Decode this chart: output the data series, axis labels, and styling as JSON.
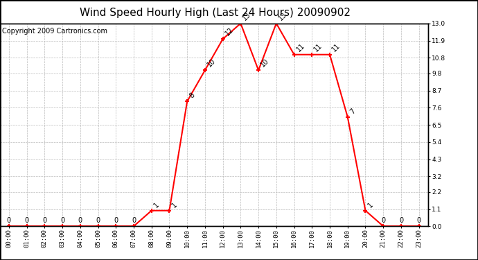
{
  "title": "Wind Speed Hourly High (Last 24 Hours) 20090902",
  "copyright": "Copyright 2009 Cartronics.com",
  "hours": [
    "00:00",
    "01:00",
    "02:00",
    "03:00",
    "04:00",
    "05:00",
    "06:00",
    "07:00",
    "08:00",
    "09:00",
    "10:00",
    "11:00",
    "12:00",
    "13:00",
    "14:00",
    "15:00",
    "16:00",
    "17:00",
    "18:00",
    "19:00",
    "20:00",
    "21:00",
    "22:00",
    "23:00"
  ],
  "values": [
    0,
    0,
    0,
    0,
    0,
    0,
    0,
    0,
    1,
    1,
    8,
    10,
    12,
    13,
    10,
    13,
    11,
    11,
    11,
    7,
    1,
    0,
    0,
    0
  ],
  "line_color": "#FF0000",
  "marker_color": "#FF0000",
  "background_color": "#FFFFFF",
  "grid_color": "#BBBBBB",
  "title_fontsize": 11,
  "copyright_fontsize": 7,
  "label_fontsize": 7,
  "tick_fontsize": 6.5,
  "ylim": [
    0.0,
    13.0
  ],
  "yticks": [
    0.0,
    1.1,
    2.2,
    3.2,
    4.3,
    5.4,
    6.5,
    7.6,
    8.7,
    9.8,
    10.8,
    11.9,
    13.0
  ],
  "ylabel_right": [
    "0.0",
    "1.1",
    "2.2",
    "3.2",
    "4.3",
    "5.4",
    "6.5",
    "7.6",
    "8.7",
    "9.8",
    "10.8",
    "11.9",
    "13.0"
  ]
}
